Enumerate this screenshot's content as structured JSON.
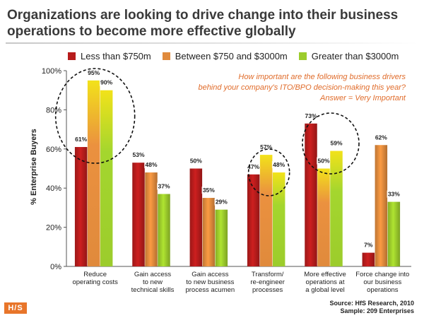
{
  "title": "Organizations are looking to drive change into their business operations to become more effective globally",
  "question": {
    "line1": "How important are the following business drivers",
    "line2": "behind your company's ITO/BPO decision-making this year?",
    "line3": "Answer = Very Important"
  },
  "source": {
    "line1": "Source:  HfS Research, 2010",
    "line2": "Sample:  209 Enterprises"
  },
  "logo": {
    "left": "H",
    "slash": "/",
    "right": "S"
  },
  "colors": {
    "series1": "#b71c1c",
    "series2": "#e08a3c",
    "series3": "#9ccc2c",
    "highlight": "#f2e21a",
    "question": "#e06c2b",
    "logo": "#e8752a"
  },
  "chart_data": {
    "type": "bar",
    "title": "",
    "xlabel": "",
    "ylabel": "% Enterprise Buyers",
    "ylim": [
      0,
      100
    ],
    "yticks": [
      0,
      20,
      40,
      60,
      80,
      100
    ],
    "ytick_labels": [
      "0%",
      "20%",
      "40%",
      "60%",
      "80%",
      "100%"
    ],
    "categories": [
      [
        "Reduce",
        "operating costs"
      ],
      [
        "Gain access",
        "to new",
        "technical skills"
      ],
      [
        "Gain access",
        "to new business",
        "process acumen"
      ],
      [
        "Transform/",
        "re-engineer",
        "processes"
      ],
      [
        "More effective",
        "operations at",
        "a global level"
      ],
      [
        "Force change into",
        "our business",
        "operations"
      ]
    ],
    "series": [
      {
        "name": "Less than $750m",
        "values": [
          61,
          53,
          50,
          47,
          73,
          7
        ],
        "labels": [
          "61%",
          "53%",
          "50%",
          "47%",
          "73%",
          "7%"
        ]
      },
      {
        "name": "Between $750 and $3000m",
        "values": [
          95,
          48,
          35,
          57,
          50,
          62
        ],
        "labels": [
          "95%",
          "48%",
          "35%",
          "57%",
          "50%",
          "62%"
        ]
      },
      {
        "name": "Greater than $3000m",
        "values": [
          90,
          37,
          29,
          48,
          59,
          33
        ],
        "labels": [
          "90%",
          "37%",
          "29%",
          "48%",
          "59%",
          "33%"
        ]
      }
    ],
    "highlighted_groups": [
      0,
      3,
      4
    ],
    "legend_position": "top",
    "grid": false
  }
}
